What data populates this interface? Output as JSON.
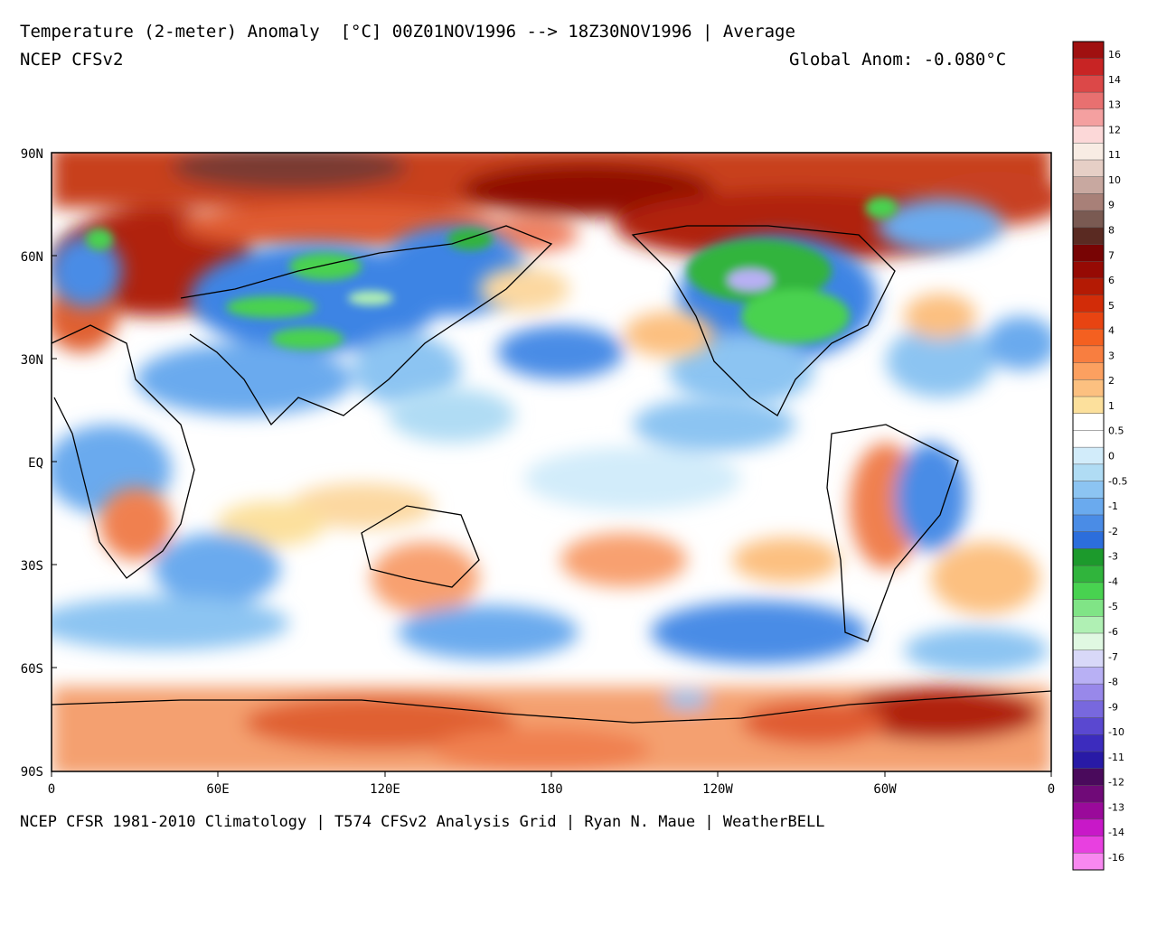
{
  "header": {
    "title": "Temperature (2-meter) Anomaly  [°C] 00Z01NOV1996 --> 18Z30NOV1996 | Average",
    "model": "NCEP CFSv2",
    "global_anom": "Global Anom: -0.080°C"
  },
  "footer": {
    "credits": "NCEP CFSR 1981-2010 Climatology | T574 CFSv2 Analysis Grid | Ryan N. Maue | WeatherBELL"
  },
  "map": {
    "lat_labels": [
      "90N",
      "60N",
      "30N",
      "EQ",
      "30S",
      "60S",
      "90S"
    ],
    "lon_labels": [
      "0",
      "60E",
      "120E",
      "180",
      "120W",
      "60W",
      "0"
    ]
  },
  "colorbar": {
    "labels": [
      "16",
      "14",
      "13",
      "12",
      "11",
      "10",
      "9",
      "8",
      "7",
      "6",
      "5",
      "4",
      "3",
      "2",
      "1",
      "0.5",
      "0",
      "-0.5",
      "-1",
      "-2",
      "-3",
      "-4",
      "-5",
      "-6",
      "-7",
      "-8",
      "-9",
      "-10",
      "-11",
      "-12",
      "-13",
      "-14",
      "-16"
    ],
    "colors": [
      "#a01010",
      "#c82424",
      "#dc4848",
      "#e87070",
      "#f4a0a0",
      "#fcd8d8",
      "#f8ece4",
      "#e6cfc6",
      "#c8a8a0",
      "#a88078",
      "#7a5a52",
      "#5a2a22",
      "#780404",
      "#960a04",
      "#b41a04",
      "#d22c08",
      "#e84412",
      "#f46020",
      "#f87e40",
      "#fca060",
      "#fcc080",
      "#fce09c",
      "#ffffff",
      "#ffffff",
      "#d2ecfa",
      "#b0dcf4",
      "#8cc4f2",
      "#6aaaee",
      "#4a8ce6",
      "#2c6edc",
      "#1c9a2c",
      "#30b43c",
      "#48d250",
      "#80e486",
      "#b0f0b4",
      "#e0f8e2",
      "#d8d8f8",
      "#b8b0f4",
      "#9888ea",
      "#7868de",
      "#5a48d0",
      "#3c2cbe",
      "#281aa6",
      "#4a0a5c",
      "#700a78",
      "#9a0a9a",
      "#c818c8",
      "#e840e0",
      "#f888f0"
    ]
  },
  "anomalies": [
    {
      "type": "warm-strong",
      "color": "#c84424",
      "region": "arctic-north"
    },
    {
      "type": "warm-strong",
      "color": "#b0300c",
      "region": "west-siberia"
    },
    {
      "type": "warm",
      "color": "#f4a070",
      "region": "antarctic"
    },
    {
      "type": "cold",
      "color": "#4a8ce6",
      "region": "central-asia"
    },
    {
      "type": "very-cold",
      "color": "#40c848",
      "region": "north-america"
    }
  ]
}
